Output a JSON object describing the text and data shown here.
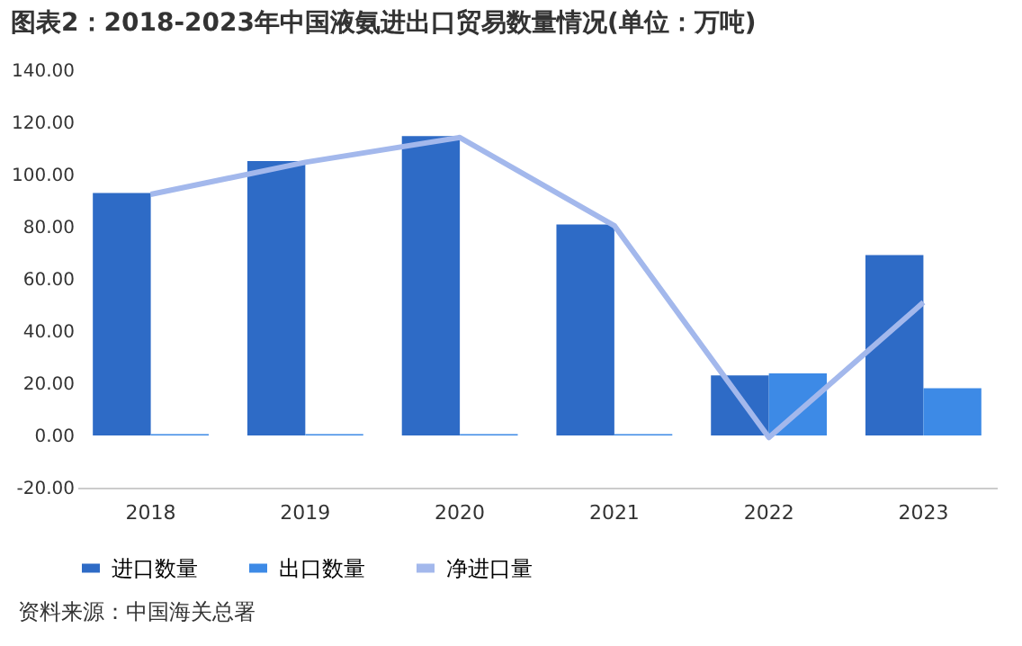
{
  "chart_data": {
    "type": "bar",
    "title": "图表2：2018-2023年中国液氨进出口贸易数量情况(单位：万吨)",
    "categories": [
      "2018",
      "2019",
      "2020",
      "2021",
      "2022",
      "2023"
    ],
    "series": [
      {
        "name": "进口数量",
        "type": "bar",
        "color": "#2e6bc6",
        "values": [
          92.9,
          105.2,
          114.7,
          80.9,
          23.0,
          69.1
        ]
      },
      {
        "name": "出口数量",
        "type": "bar",
        "color": "#3d8ae6",
        "values": [
          0.5,
          0.5,
          0.5,
          0.5,
          23.8,
          18.1
        ]
      },
      {
        "name": "净进口量",
        "type": "line",
        "color": "#a3b8ec",
        "values": [
          92.4,
          104.7,
          114.2,
          80.4,
          -0.8,
          51.0
        ]
      }
    ],
    "ylim": [
      -20,
      140
    ],
    "yticks": [
      {
        "value": -20,
        "label": "-20.00"
      },
      {
        "value": 0,
        "label": "0.00"
      },
      {
        "value": 20,
        "label": "20.00"
      },
      {
        "value": 40,
        "label": "40.00"
      },
      {
        "value": 60,
        "label": "60.00"
      },
      {
        "value": 80,
        "label": "80.00"
      },
      {
        "value": 100,
        "label": "100.00"
      },
      {
        "value": 120,
        "label": "120.00"
      },
      {
        "value": 140,
        "label": "140.00"
      }
    ],
    "legend": "bottom",
    "annotations": [
      "资料来源：中国海关总署"
    ]
  }
}
